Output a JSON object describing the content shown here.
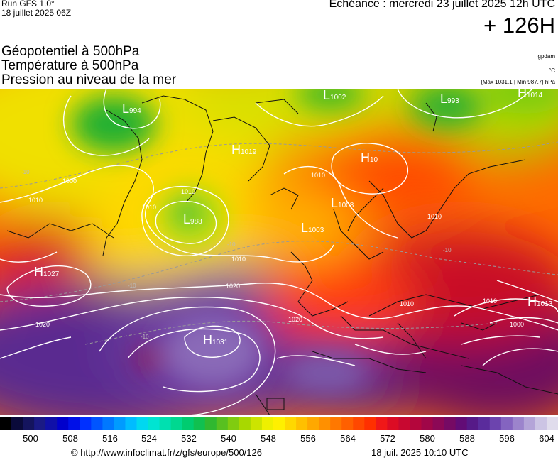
{
  "header": {
    "run_model": "Run GFS 1.0°",
    "run_date": "18 juillet 2025 06Z",
    "echeance": "Echéance : mercredi 23 juillet 2025 12h UTC",
    "horizon": "+ 126H"
  },
  "legend": {
    "line1": "Géopotentiel à 500hPa",
    "line2": "Température à 500hPa",
    "line3": "Pression au niveau de la mer",
    "unit1": "gpdam",
    "unit2": "°C",
    "unit3": "[Max 1031.1 | Min 987.7] hPa"
  },
  "map": {
    "pressure_centers": [
      {
        "kind": "L",
        "value": "994"
      },
      {
        "kind": "L",
        "value": "1002"
      },
      {
        "kind": "L",
        "value": "993"
      },
      {
        "kind": "H",
        "value": "1014"
      },
      {
        "kind": "H",
        "value": "1019"
      },
      {
        "kind": "H",
        "value": "10"
      },
      {
        "kind": "L",
        "value": "988"
      },
      {
        "kind": "L",
        "value": "1008"
      },
      {
        "kind": "L",
        "value": "1003"
      },
      {
        "kind": "H",
        "value": "1027"
      },
      {
        "kind": "H",
        "value": "1031"
      },
      {
        "kind": "H",
        "value": "1013"
      }
    ],
    "isobar_labels": [
      "1010",
      "1000",
      "1010",
      "1010",
      "1010",
      "1020",
      "1020",
      "1020",
      "1010",
      "1010",
      "1000",
      "1010",
      "1010"
    ],
    "temperature_labels": [
      "-10",
      "-10",
      "-10",
      "-10",
      "-10"
    ]
  },
  "colorbar": {
    "colors": [
      "#000000",
      "#0a0a3a",
      "#14145e",
      "#1a1a85",
      "#1010a8",
      "#0000cc",
      "#0010e8",
      "#0030ff",
      "#0055ff",
      "#0078ff",
      "#009bff",
      "#00bcff",
      "#00d8f0",
      "#00e4d2",
      "#00e0b0",
      "#00d890",
      "#00cc70",
      "#10c050",
      "#30b830",
      "#58c020",
      "#80cc10",
      "#a8d800",
      "#cce400",
      "#eef000",
      "#fff000",
      "#ffd800",
      "#ffc000",
      "#ffa800",
      "#ff9000",
      "#ff7800",
      "#ff6000",
      "#ff4800",
      "#ff3000",
      "#f01818",
      "#dc0c24",
      "#c80830",
      "#b4063c",
      "#a00648",
      "#8c0856",
      "#760a64",
      "#620c76",
      "#561a88",
      "#5a2c9c",
      "#6c44ae",
      "#8464c0",
      "#9c84cc",
      "#b4a4d8",
      "#ccc4e4",
      "#e0dcec"
    ],
    "ticks": [
      "500",
      "508",
      "516",
      "524",
      "532",
      "540",
      "548",
      "556",
      "564",
      "572",
      "580",
      "588",
      "596",
      "604"
    ]
  },
  "footer": {
    "copyright": "© http://www.infoclimat.fr/z/gfs/europe/500/126",
    "stamp": "18 juil. 2025 10:10 UTC"
  }
}
